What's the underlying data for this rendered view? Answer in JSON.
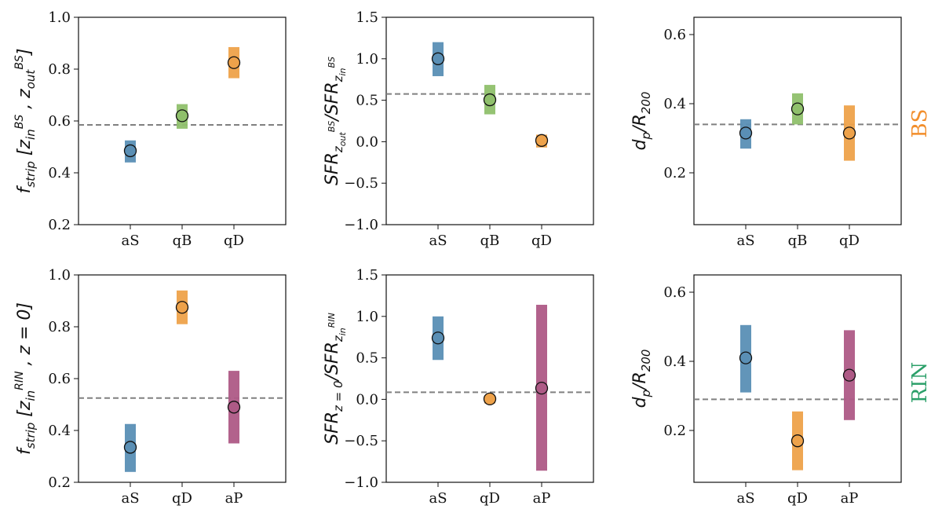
{
  "row_labels": [
    {
      "text": "BS",
      "color": "#f28e2b"
    },
    {
      "text": "RIN",
      "color": "#2ca06a"
    }
  ],
  "colors": {
    "aS": "#5a8fb5",
    "qB": "#8fc06b",
    "qD": "#eea24a",
    "aP": "#ae5a86",
    "ref_line": "#808080"
  },
  "chart_data": [
    {
      "type": "scatter",
      "ylabel_base": "f",
      "ylabel_sub": "strip",
      "ylabel_rest": " [z",
      "ylabel": "f_strip [z_in^BS , z_out^BS]",
      "categories": [
        "aS",
        "qB",
        "qD"
      ],
      "values": [
        0.485,
        0.62,
        0.825
      ],
      "err_low": [
        0.44,
        0.57,
        0.765
      ],
      "err_high": [
        0.525,
        0.665,
        0.885
      ],
      "ref_line": 0.585,
      "ylim": [
        0.2,
        1.0
      ],
      "yticks": [
        "0.2",
        "0.4",
        "0.6",
        "0.8",
        "1.0"
      ],
      "ytick_values": [
        0.2,
        0.4,
        0.6,
        0.8,
        1.0
      ]
    },
    {
      "type": "scatter",
      "ylabel": "SFR_{z_out^BS}/SFR_{z_in^BS}",
      "categories": [
        "aS",
        "qB",
        "qD"
      ],
      "values": [
        1.0,
        0.505,
        0.015
      ],
      "err_low": [
        0.79,
        0.33,
        -0.07
      ],
      "err_high": [
        1.2,
        0.685,
        0.085
      ],
      "ref_line": 0.575,
      "ylim": [
        -1.0,
        1.5
      ],
      "yticks": [
        "−1.0",
        "−0.5",
        "0.0",
        "0.5",
        "1.0",
        "1.5"
      ],
      "ytick_values": [
        -1.0,
        -0.5,
        0.0,
        0.5,
        1.0,
        1.5
      ]
    },
    {
      "type": "scatter",
      "ylabel": "d_p/R_200",
      "categories": [
        "aS",
        "qB",
        "qD"
      ],
      "values": [
        0.315,
        0.385,
        0.315
      ],
      "err_low": [
        0.27,
        0.34,
        0.235
      ],
      "err_high": [
        0.355,
        0.43,
        0.395
      ],
      "ref_line": 0.34,
      "ylim": [
        0.05,
        0.65
      ],
      "yticks": [
        "0.2",
        "0.4",
        "0.6"
      ],
      "ytick_values": [
        0.2,
        0.4,
        0.6
      ]
    },
    {
      "type": "scatter",
      "ylabel": "f_strip [z_in^RIN , z = 0]",
      "categories": [
        "aS",
        "qD",
        "aP"
      ],
      "values": [
        0.335,
        0.875,
        0.49
      ],
      "err_low": [
        0.24,
        0.81,
        0.35
      ],
      "err_high": [
        0.425,
        0.94,
        0.63
      ],
      "ref_line": 0.525,
      "ylim": [
        0.2,
        1.0
      ],
      "yticks": [
        "0.2",
        "0.4",
        "0.6",
        "0.8",
        "1.0"
      ],
      "ytick_values": [
        0.2,
        0.4,
        0.6,
        0.8,
        1.0
      ]
    },
    {
      "type": "scatter",
      "ylabel": "SFR_{z=0}/SFR_{z_in^RIN}",
      "categories": [
        "aS",
        "qD",
        "aP"
      ],
      "values": [
        0.74,
        0.005,
        0.135
      ],
      "err_low": [
        0.475,
        -0.05,
        -0.86
      ],
      "err_high": [
        1.0,
        0.05,
        1.14
      ],
      "ref_line": 0.085,
      "ylim": [
        -1.0,
        1.5
      ],
      "yticks": [
        "−1.0",
        "−0.5",
        "0.0",
        "0.5",
        "1.0",
        "1.5"
      ],
      "ytick_values": [
        -1.0,
        -0.5,
        0.0,
        0.5,
        1.0,
        1.5
      ]
    },
    {
      "type": "scatter",
      "ylabel": "d_p/R_200",
      "categories": [
        "aS",
        "qD",
        "aP"
      ],
      "values": [
        0.41,
        0.17,
        0.36
      ],
      "err_low": [
        0.31,
        0.085,
        0.23
      ],
      "err_high": [
        0.505,
        0.255,
        0.49
      ],
      "ref_line": 0.29,
      "ylim": [
        0.05,
        0.65
      ],
      "yticks": [
        "0.2",
        "0.4",
        "0.6"
      ],
      "ytick_values": [
        0.2,
        0.4,
        0.6
      ]
    }
  ]
}
